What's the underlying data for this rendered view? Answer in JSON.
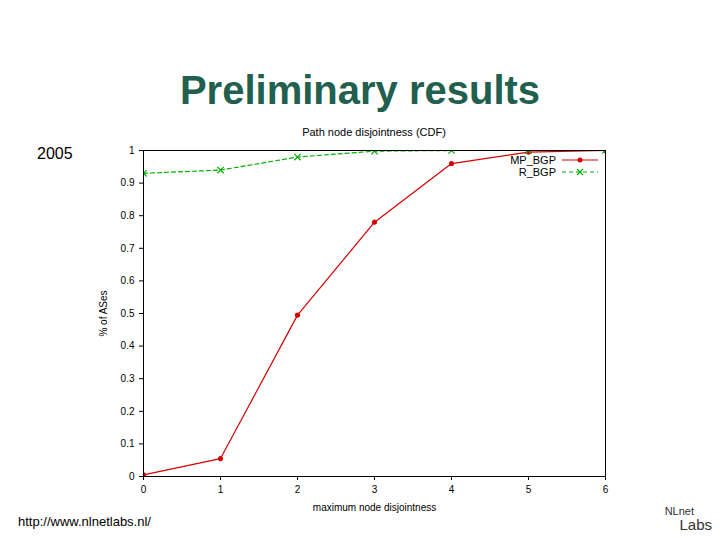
{
  "slide": {
    "title": "Preliminary results",
    "label": "2005",
    "footer": "http://www.nlnetlabs.nl/",
    "logo": [
      "NLnet",
      "Labs"
    ]
  },
  "chart_data": {
    "type": "line",
    "title": "Path node disjointness (CDF)",
    "x_label": "maximum node disjointness",
    "y_label": "% of ASes",
    "x": [
      0,
      1,
      2,
      3,
      4,
      5,
      6
    ],
    "series": [
      {
        "name": "MP_BGP",
        "color": "#d40000",
        "marker": "circle",
        "line_style": "solid",
        "values": [
          0.005,
          0.055,
          0.495,
          0.78,
          0.96,
          0.995,
          1.0
        ]
      },
      {
        "name": "R_BGP",
        "color": "#00b000",
        "marker": "cross",
        "line_style": "dashed",
        "values": [
          0.93,
          0.94,
          0.98,
          0.998,
          1.0,
          1.0,
          1.0
        ]
      }
    ],
    "xlim": [
      0,
      6
    ],
    "xticks": [
      0,
      1,
      2,
      3,
      4,
      5,
      6
    ],
    "ylim": [
      0,
      1
    ],
    "yticks": [
      0,
      0.1,
      0.2,
      0.3,
      0.4,
      0.5,
      0.6,
      0.7,
      0.8,
      0.9,
      1
    ],
    "grid": false,
    "legend": "top-right"
  }
}
